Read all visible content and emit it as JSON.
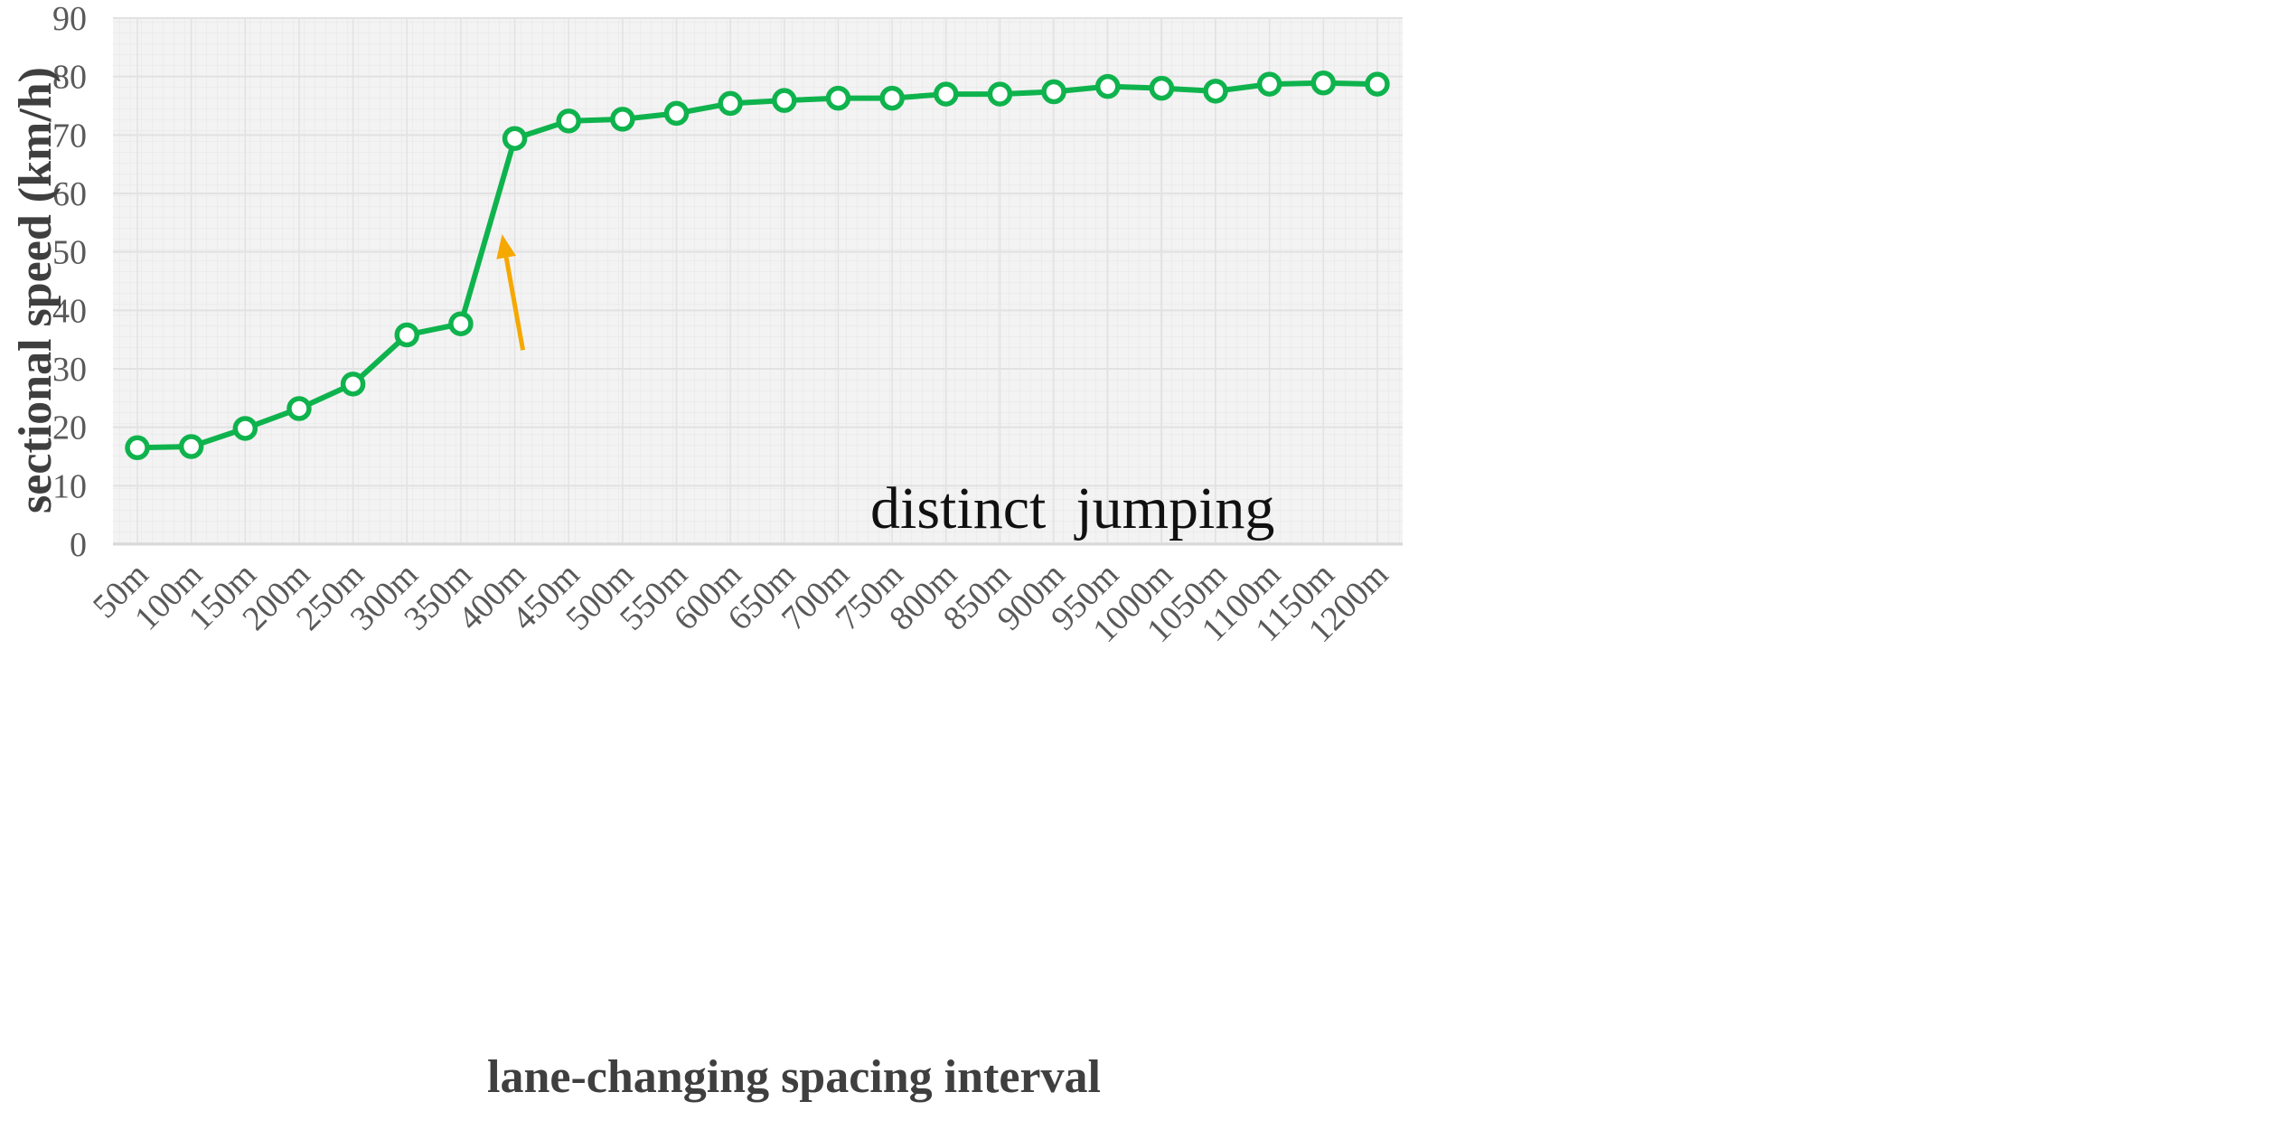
{
  "chart_data": {
    "type": "line",
    "title": "",
    "xlabel": "lane-changing spacing interval",
    "ylabel": "sectional speed (km/h)",
    "categories": [
      "50m",
      "100m",
      "150m",
      "200m",
      "250m",
      "300m",
      "350m",
      "400m",
      "450m",
      "500m",
      "550m",
      "600m",
      "650m",
      "700m",
      "750m",
      "800m",
      "850m",
      "900m",
      "950m",
      "1000m",
      "1050m",
      "1100m",
      "1150m",
      "1200m"
    ],
    "series": [
      {
        "values": [
          16.5,
          16.7,
          19.8,
          23.2,
          27.4,
          35.8,
          37.7,
          69.4,
          72.4,
          72.7,
          73.7,
          75.4,
          75.9,
          76.3,
          76.3,
          77.0,
          77.0,
          77.4,
          78.3,
          78.0,
          77.5,
          78.7,
          78.9,
          78.7
        ],
        "color": "#0fb34d",
        "marker": "open-circle"
      }
    ],
    "ylim": [
      0,
      90
    ],
    "yticks": [
      0,
      10,
      20,
      30,
      40,
      50,
      60,
      70,
      80,
      90
    ],
    "grid": true,
    "legend": "none",
    "annotations": [
      {
        "text": "distinct  jumping",
        "arrow_color": "#f5a800",
        "points_to": {
          "x": "400m",
          "y": 53
        }
      }
    ]
  },
  "colors": {
    "plot_background": "#f3f3f3",
    "grid": "#e2e2e2",
    "axis_line": "#d9d9d9",
    "line": "#0fb34d",
    "marker_fill": "#ffffff",
    "arrow": "#f5a800"
  }
}
